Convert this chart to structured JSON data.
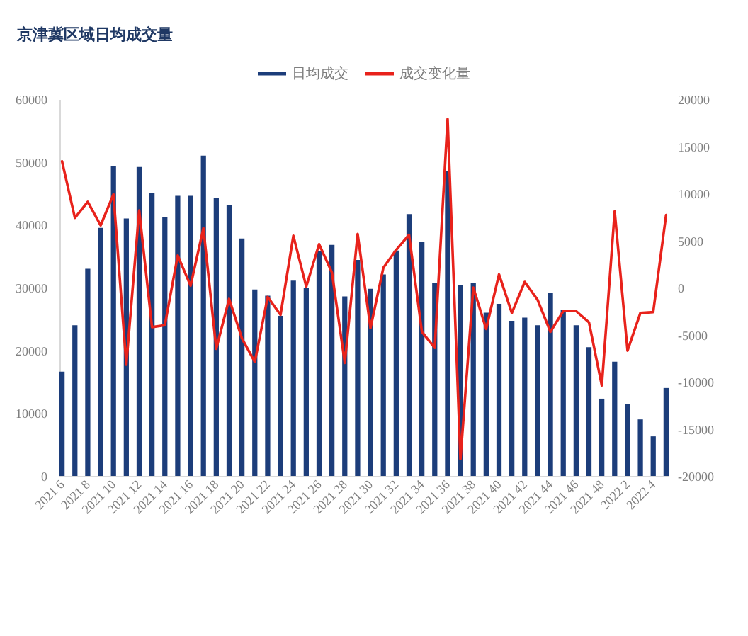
{
  "chart_data": {
    "type": "bar",
    "title": "京津冀区域日均成交量",
    "categories": [
      "2021 6",
      null,
      "2021 8",
      null,
      "2021 10",
      null,
      "2021 12",
      null,
      "2021 14",
      null,
      "2021 16",
      null,
      "2021 18",
      null,
      "2021 20",
      null,
      "2021 22",
      null,
      "2021 24",
      null,
      "2021 26",
      null,
      "2021 28",
      null,
      "2021 30",
      null,
      "2021 32",
      null,
      "2021 34",
      null,
      "2021 36",
      null,
      "2021 38",
      null,
      "2021 40",
      null,
      "2021 42",
      null,
      "2021 44",
      null,
      "2021 46",
      null,
      "2021 48",
      null,
      "2022 2",
      null,
      "2022 4",
      null
    ],
    "series": [
      {
        "name": "日均成交",
        "color": "#1c3d7a",
        "values": [
          16600,
          24000,
          33000,
          39500,
          49400,
          41000,
          49200,
          45100,
          41200,
          44600,
          44600,
          51000,
          44200,
          43100,
          37800,
          29700,
          28700,
          25500,
          31100,
          30000,
          35800,
          36800,
          28600,
          34400,
          29800,
          32100,
          35900,
          41700,
          37300,
          30700,
          48600,
          30400,
          30700,
          26000,
          27400,
          24700,
          25200,
          24000,
          29200,
          26500,
          24000,
          20500,
          12300,
          18200,
          11500,
          9000,
          6300,
          14000
        ]
      },
      {
        "name": "成交变化量",
        "type": "line",
        "axis": "y2",
        "color": "#e8221b",
        "values": [
          13400,
          7400,
          9100,
          6600,
          9900,
          -8200,
          8200,
          -4200,
          -4000,
          3400,
          200,
          6300,
          -6500,
          -1200,
          -5400,
          -7900,
          -1000,
          -2900,
          5500,
          100,
          4600,
          1600,
          -8000,
          5700,
          -4300,
          2100,
          4000,
          5600,
          -4700,
          -6400,
          17900,
          -18200,
          0,
          -4400,
          1400,
          -2700,
          600,
          -1300,
          -4700,
          -2500,
          -2500,
          -3700,
          -10400,
          8100,
          -6700,
          -2700,
          -2600,
          7700
        ]
      }
    ],
    "ylim": [
      0,
      60000
    ],
    "yticks": [
      0,
      10000,
      20000,
      30000,
      40000,
      50000,
      60000
    ],
    "y2lim": [
      -20000,
      20000
    ],
    "y2ticks": [
      -20000,
      -15000,
      -10000,
      -5000,
      0,
      5000,
      10000,
      15000,
      20000
    ],
    "legend": "top"
  }
}
